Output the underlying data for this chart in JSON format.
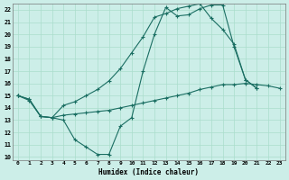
{
  "xlabel": "Humidex (Indice chaleur)",
  "background_color": "#cceee8",
  "grid_color": "#aaddcc",
  "line_color": "#1a6e62",
  "xlim": [
    -0.5,
    23.5
  ],
  "ylim": [
    9.7,
    22.5
  ],
  "xticks": [
    0,
    1,
    2,
    3,
    4,
    5,
    6,
    7,
    8,
    9,
    10,
    11,
    12,
    13,
    14,
    15,
    16,
    17,
    18,
    19,
    20,
    21,
    22,
    23
  ],
  "yticks": [
    10,
    11,
    12,
    13,
    14,
    15,
    16,
    17,
    18,
    19,
    20,
    21,
    22
  ],
  "curve1_x": [
    0,
    1,
    2,
    3,
    4,
    5,
    6,
    7,
    8,
    9,
    10,
    11,
    12,
    13,
    14,
    15,
    16,
    17,
    18,
    19,
    20,
    21
  ],
  "curve1_y": [
    15.0,
    14.7,
    13.3,
    13.2,
    13.0,
    11.4,
    10.8,
    10.2,
    10.2,
    12.5,
    13.2,
    17.0,
    20.0,
    22.2,
    21.5,
    21.6,
    22.1,
    22.4,
    22.4,
    19.0,
    16.3,
    15.6
  ],
  "curve2_x": [
    0,
    1,
    2,
    3,
    4,
    5,
    6,
    7,
    8,
    9,
    10,
    11,
    12,
    13,
    14,
    15,
    16,
    17,
    18,
    19,
    20,
    21,
    22,
    23
  ],
  "curve2_y": [
    15.0,
    14.7,
    13.3,
    13.2,
    13.4,
    13.5,
    13.6,
    13.7,
    13.8,
    14.0,
    14.2,
    14.4,
    14.6,
    14.8,
    15.0,
    15.2,
    15.5,
    15.7,
    15.9,
    15.9,
    16.0,
    15.9,
    15.8,
    15.6
  ],
  "curve3_x": [
    0,
    1,
    2,
    3,
    4,
    5,
    6,
    7,
    8,
    9,
    10,
    11,
    12,
    13,
    14,
    15,
    16,
    17,
    18,
    19,
    20,
    21
  ],
  "curve3_y": [
    15.0,
    14.6,
    13.3,
    13.2,
    14.2,
    14.5,
    15.0,
    15.5,
    16.2,
    17.2,
    18.5,
    19.8,
    21.4,
    21.7,
    22.1,
    22.3,
    22.5,
    21.3,
    20.4,
    19.2,
    16.3,
    15.6
  ]
}
